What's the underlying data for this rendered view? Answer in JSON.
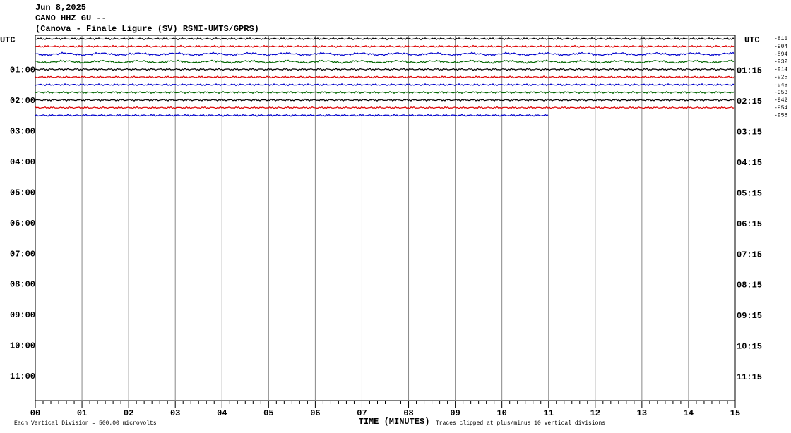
{
  "header": {
    "date": "Jun 8,2025",
    "station": "CANO HHZ GU --",
    "location": "(Canova - Finale Ligure (SV) RSNI-UMTS/GPRS)"
  },
  "left_axis": {
    "title": "UTC",
    "labels": [
      "01:00",
      "02:00",
      "03:00",
      "04:00",
      "05:00",
      "06:00",
      "07:00",
      "08:00",
      "09:00",
      "10:00",
      "11:00"
    ]
  },
  "right_axis": {
    "title": "UTC",
    "labels": [
      "01:15",
      "02:15",
      "03:15",
      "04:15",
      "05:15",
      "06:15",
      "07:15",
      "08:15",
      "09:15",
      "10:15",
      "11:15"
    ]
  },
  "trace_offsets": [
    "-816",
    "-904",
    "-894",
    "-932",
    "-914",
    "-925",
    "-946",
    "-953",
    "-942",
    "-954",
    "-958"
  ],
  "x_axis": {
    "title": "TIME (MINUTES)",
    "labels": [
      "00",
      "01",
      "02",
      "03",
      "04",
      "05",
      "06",
      "07",
      "08",
      "09",
      "10",
      "11",
      "12",
      "13",
      "14",
      "15"
    ]
  },
  "footer": {
    "scale": "Each Vertical Division =  500.00 microvolts",
    "clip": "Traces clipped at plus/minus 10 vertical divisions"
  }
}
